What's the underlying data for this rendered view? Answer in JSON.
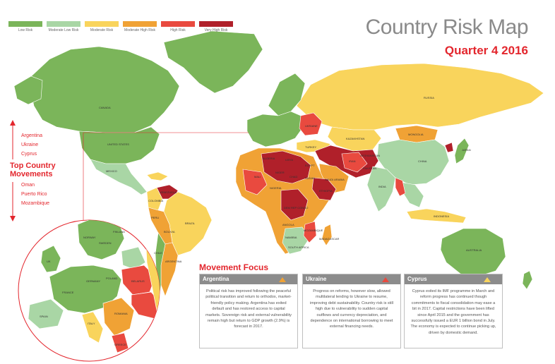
{
  "title": "Country Risk Map",
  "subtitle": "Quarter 4  2016",
  "legend": [
    {
      "label": "Low Risk",
      "color": "#7bb55a"
    },
    {
      "label": "Moderate Low Risk",
      "color": "#a9d6a5"
    },
    {
      "label": "Moderate Risk",
      "color": "#f9d45c"
    },
    {
      "label": "Moderate High Risk",
      "color": "#f0a235"
    },
    {
      "label": "High Risk",
      "color": "#e94a3f"
    },
    {
      "label": "Very High Risk",
      "color": "#b0202a"
    }
  ],
  "top_movements": {
    "heading_line1": "Top Country",
    "heading_line2": "Movements",
    "up": [
      "Argentina",
      "Ukraine",
      "Cyprus"
    ],
    "down": [
      "Oman",
      "Puerto Rico",
      "Mozambique"
    ]
  },
  "movement_focus": {
    "title": "Movement Focus",
    "panels": [
      {
        "country": "Argentina",
        "arrow_color": "#f0a235",
        "text": "Political risk has improved following the peaceful political transition and return to orthodox, market-friendly policy making. Argentina has exited default and has restored access to capital markets. Sovereign risk and external vulnerability remain high but return to GDP growth (2.9%) is forecast in 2017."
      },
      {
        "country": "Ukraine",
        "arrow_color": "#e94a3f",
        "text": "Progress on reforms, however slow, allowed multilateral lending to Ukraine to resume, improving debt sustainability. Country risk is still high due to vulnerability to sudden capital outflows and currency depreciation, and dependence on international borrowing to meet external financing needs."
      },
      {
        "country": "Cyprus",
        "arrow_color": "#f9d45c",
        "text": "Cyprus exited its IMF programme in March and reform progress has continued though commitments to fiscal consolidation may ease a bit in 2017. Capital restrictions have been lifted since April 2015 and the government has successfully issued a EUR 1 billion bond in July. The economy is expected to continue picking up, driven by domestic demand."
      }
    ]
  },
  "map_labels": {
    "canada": "CANADA",
    "usa": "UNITED STATES",
    "mexico": "MEXICO",
    "brazil": "BRAZIL",
    "argentina": "ARGENTINA",
    "peru": "PERU",
    "bolivia": "BOLIVIA",
    "colombia": "COLOMBIA",
    "venezuela": "VENEZUELA",
    "chile": "CHILE",
    "russia": "RUSSIA",
    "kazakhstan": "KAZAKHSTAN",
    "mongolia": "MONGOLIA",
    "china": "CHINA",
    "india": "INDIA",
    "iran": "IRAN",
    "turkey": "TURKEY",
    "saudi": "SAUDI ARABIA",
    "egypt": "EGYPT",
    "libya": "LIBYA",
    "algeria": "ALGERIA",
    "mali": "MALI",
    "niger": "NIGER",
    "chad": "CHAD",
    "sudan": "SUDAN",
    "nigeria": "NIGERIA",
    "ethiopia": "ETHIOPIA",
    "drc": "DEM REP CONGO",
    "angola": "ANGOLA",
    "namibia": "NAMIBIA",
    "south_africa": "SOUTH AFRICA",
    "mozambique": "MOZAMBIQUE",
    "madagascar": "MADAGASCAR",
    "indonesia": "INDONESIA",
    "australia": "AUSTRALIA",
    "japan": "JAPAN",
    "afghanistan": "AFGHANISTAN",
    "pakistan": "PAKISTAN",
    "ukraine": "UKRAINE",
    "france": "FRANCE",
    "spain": "SPAIN",
    "norway": "NORWAY",
    "sweden": "SWEDEN",
    "finland": "FINLAND",
    "poland": "POLAND",
    "germany": "GERMANY",
    "italy": "ITALY",
    "uk": "UK",
    "belarus": "BELARUS",
    "romania": "ROMANIA",
    "greece": "GREECE"
  }
}
